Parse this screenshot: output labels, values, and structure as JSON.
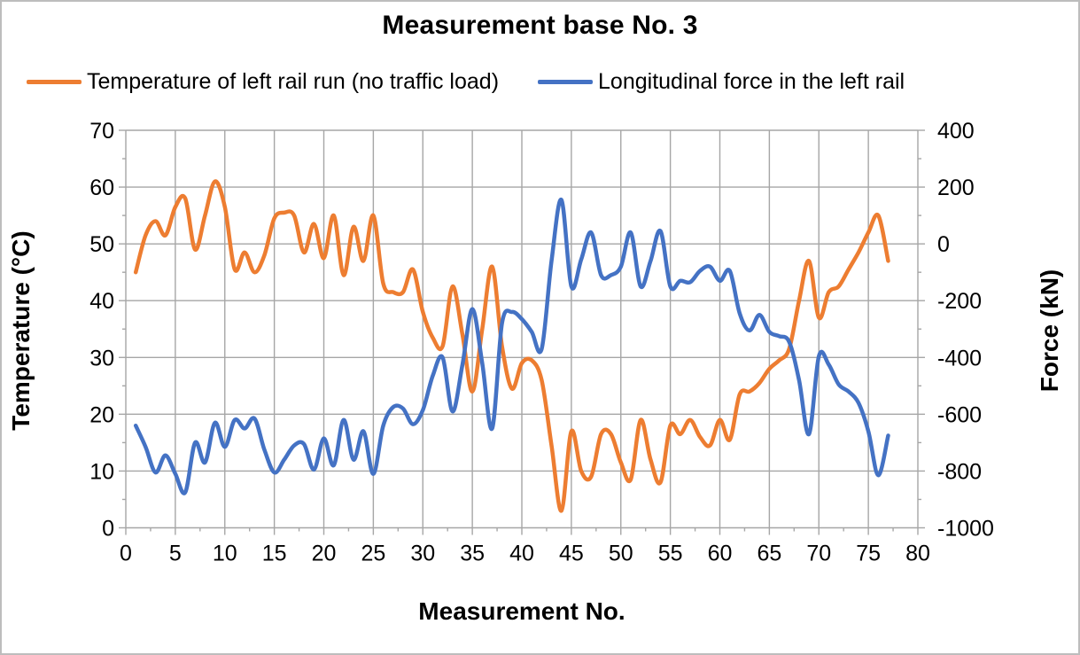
{
  "title": "Measurement base No. 3",
  "legend": [
    {
      "label": "Temperature of left rail run (no traffic load)",
      "color": "#ED7D31"
    },
    {
      "label": "Longitudinal force in the left rail",
      "color": "#4472C4"
    }
  ],
  "axes": {
    "x": {
      "title": "Measurement No.",
      "min": 0,
      "max": 80,
      "major_step": 5,
      "minor_step": 2.5
    },
    "y_left": {
      "title": "Temperature (°C)",
      "min": 0,
      "max": 70,
      "major_step": 10,
      "minor_step": 5
    },
    "y_right": {
      "title": "Force (kN)",
      "min": -1000,
      "max": 400,
      "major_step": 200,
      "minor_step": 100
    }
  },
  "style": {
    "grid_color": "#a6a6a6",
    "axis_color": "#a6a6a6",
    "line_width": 4.5,
    "text_color": "#000000"
  },
  "chart_data": {
    "type": "line",
    "smoothing": true,
    "grid": true,
    "legend_position": "top",
    "x": {
      "start": 1,
      "end": 77,
      "step": 1
    },
    "series": [
      {
        "name": "Temperature of left rail run (no traffic load)",
        "axis": "y_left",
        "color": "#ED7D31",
        "values": [
          45,
          51.5,
          54,
          51.5,
          56.5,
          58,
          49,
          55,
          61,
          56.5,
          45.5,
          48.5,
          45,
          48,
          54.5,
          55.5,
          55,
          48.5,
          53.5,
          47.5,
          55,
          44.5,
          53,
          47,
          55,
          43,
          41.5,
          41.5,
          45.5,
          38,
          33.5,
          32,
          42.5,
          34,
          24,
          35,
          46,
          32,
          24.5,
          29,
          29.5,
          26,
          14.5,
          3,
          17,
          10,
          9,
          16.5,
          16.5,
          11.5,
          8.5,
          19,
          12,
          8,
          18,
          16.5,
          19,
          16,
          14.5,
          19,
          15.5,
          23.5,
          24,
          25.5,
          28,
          29.5,
          31.5,
          40,
          47,
          37,
          41.5,
          42.5,
          45.5,
          48.5,
          52,
          55,
          47
        ]
      },
      {
        "name": "Longitudinal force in the left rail",
        "axis": "y_right",
        "color": "#4472C4",
        "values": [
          -640,
          -715,
          -805,
          -745,
          -810,
          -875,
          -700,
          -770,
          -630,
          -715,
          -620,
          -650,
          -615,
          -725,
          -805,
          -760,
          -710,
          -705,
          -795,
          -685,
          -780,
          -620,
          -760,
          -660,
          -810,
          -640,
          -575,
          -580,
          -635,
          -585,
          -465,
          -400,
          -590,
          -425,
          -230,
          -420,
          -650,
          -280,
          -240,
          -265,
          -310,
          -370,
          -60,
          155,
          -150,
          -55,
          40,
          -110,
          -110,
          -80,
          40,
          -150,
          -60,
          45,
          -150,
          -130,
          -135,
          -95,
          -80,
          -130,
          -95,
          -245,
          -305,
          -250,
          -310,
          -325,
          -345,
          -480,
          -670,
          -395,
          -425,
          -495,
          -520,
          -560,
          -660,
          -815,
          -675
        ]
      }
    ]
  }
}
